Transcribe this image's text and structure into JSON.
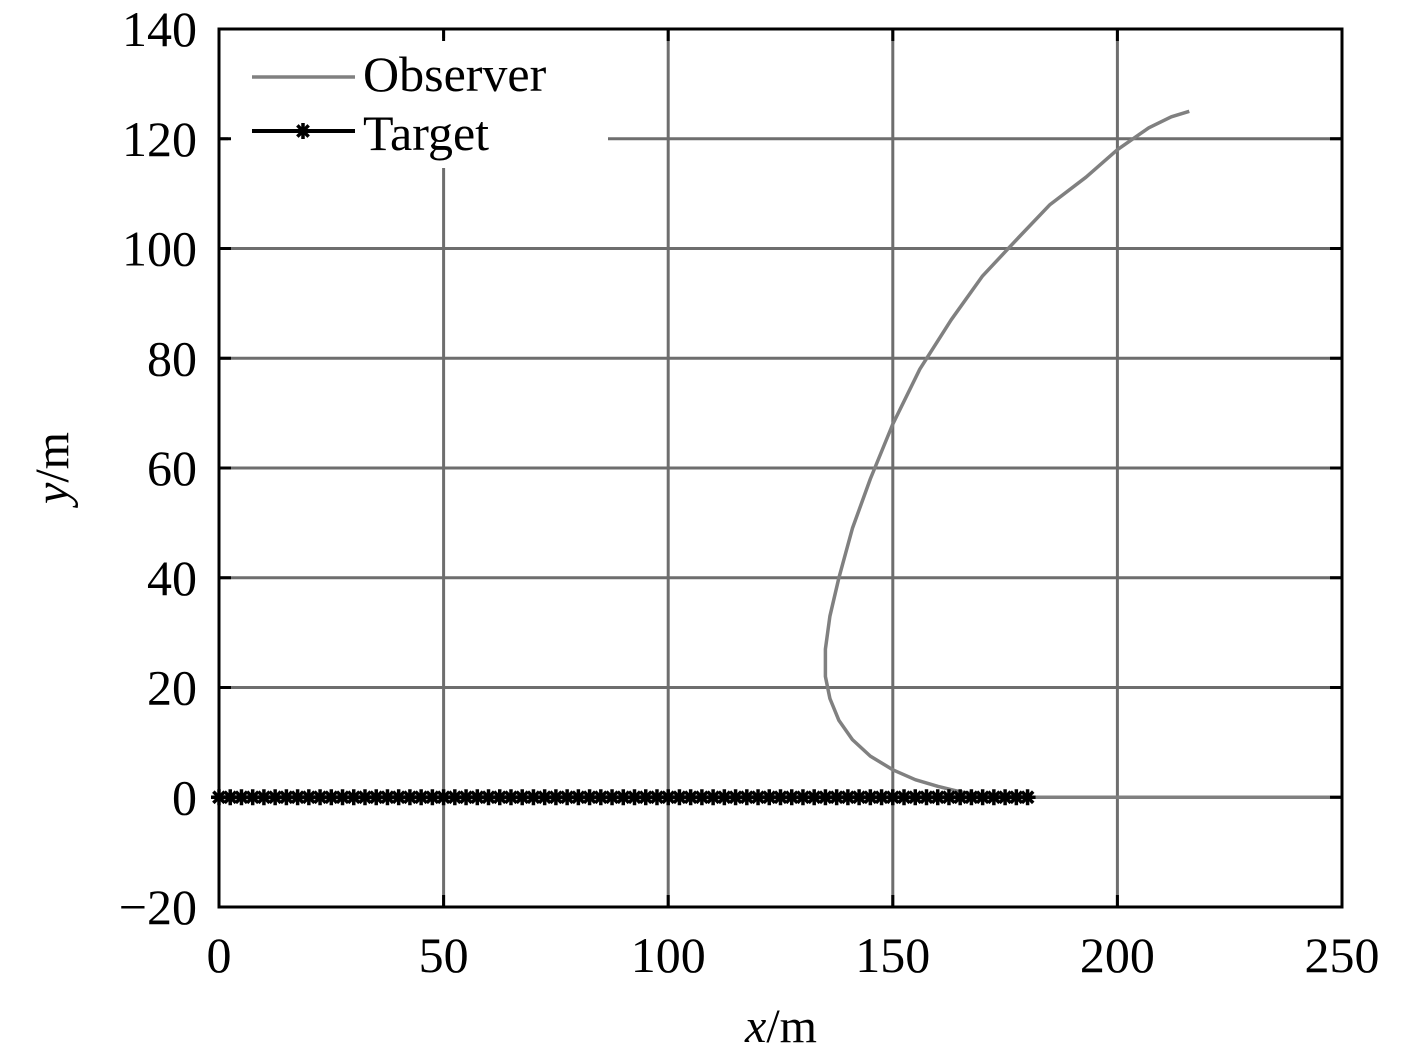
{
  "chart_data": {
    "type": "line",
    "xlabel": {
      "var": "x",
      "unit": "/m"
    },
    "ylabel": {
      "var": "y",
      "unit": "/m"
    },
    "xlim": [
      0,
      250
    ],
    "ylim": [
      -20,
      140
    ],
    "xticks": [
      "0",
      "50",
      "100",
      "150",
      "200",
      "250"
    ],
    "yticks": [
      "−20",
      "0",
      "20",
      "40",
      "60",
      "80",
      "100",
      "120",
      "140"
    ],
    "grid": true,
    "legend": {
      "placement": "top-left"
    },
    "series": [
      {
        "name": "Observer",
        "color": "#808080",
        "marker": "none",
        "x": [
          180,
          170,
          165,
          160,
          155,
          150,
          145,
          141,
          138,
          136,
          135,
          135,
          136,
          138,
          141,
          145,
          150,
          156,
          163,
          170,
          178,
          185,
          193,
          200,
          207,
          212,
          216
        ],
        "y": [
          0,
          0.4,
          1.0,
          2.0,
          3.2,
          5,
          7.5,
          10.5,
          14,
          18,
          22,
          27,
          33,
          40,
          49,
          58,
          68,
          78,
          87,
          95,
          102,
          108,
          113,
          118,
          122,
          124,
          125
        ]
      },
      {
        "name": "Target",
        "color": "#000000",
        "marker": "asterisk",
        "x_start": 0,
        "x_end": 180,
        "x_step": 2.5,
        "y": 0
      }
    ]
  }
}
